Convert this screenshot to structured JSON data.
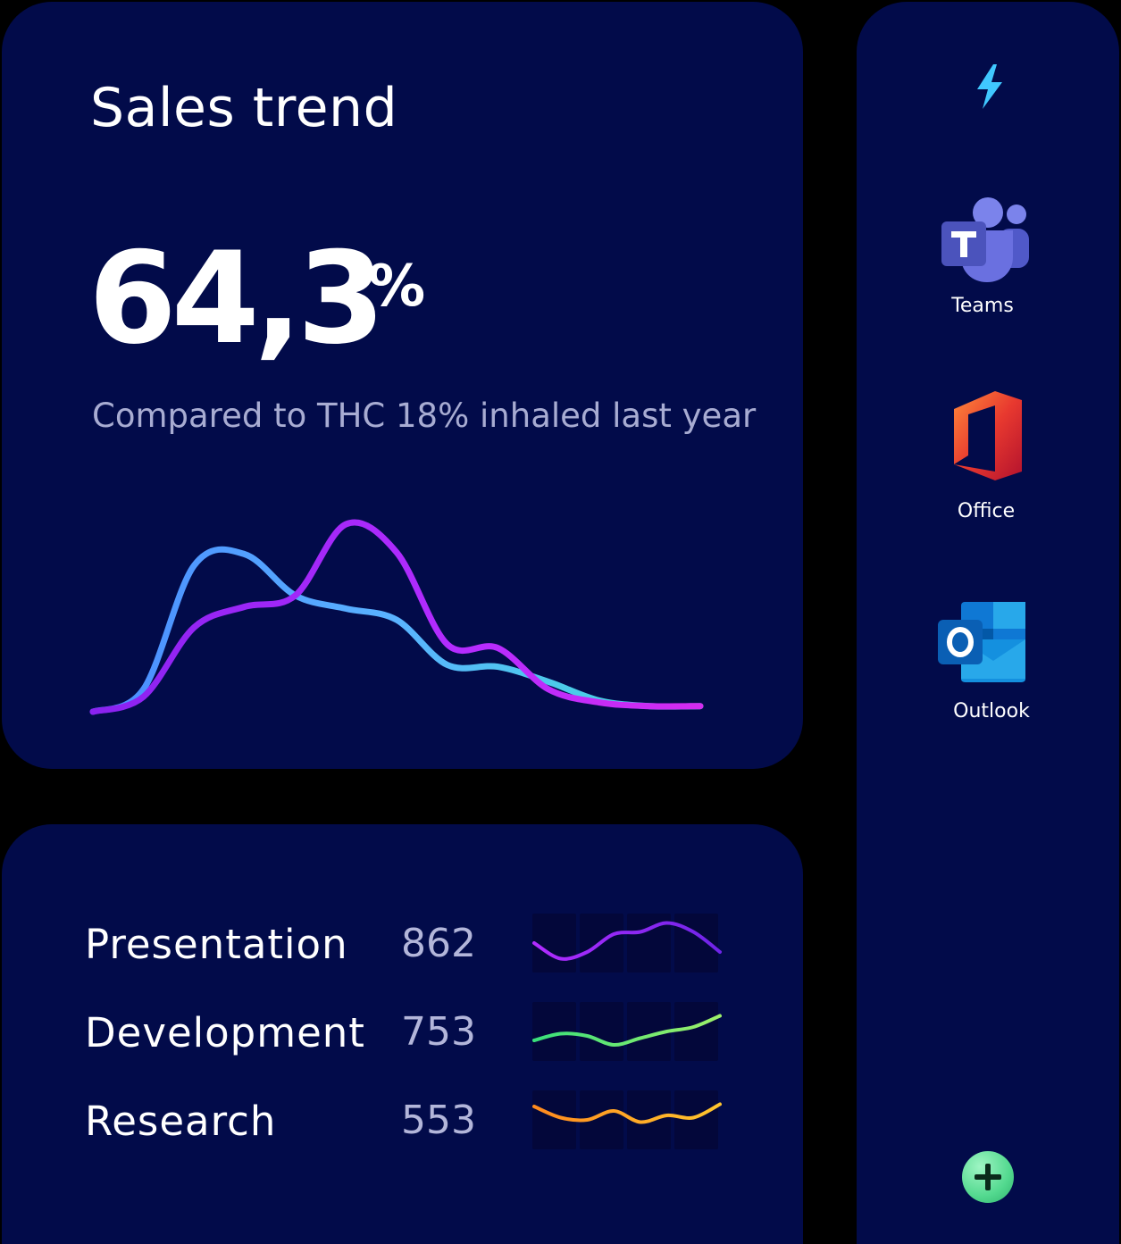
{
  "sales": {
    "title": "Sales trend",
    "value": "64,3",
    "unit": "%",
    "subtitle": "Compared to THC 18% inhaled last year"
  },
  "chart_data": {
    "type": "line",
    "x": [
      0,
      1,
      2,
      3,
      4,
      5,
      6,
      7,
      8,
      9,
      10,
      11,
      12
    ],
    "series": [
      {
        "color": "#a020f0",
        "values": [
          0,
          0.08,
          0.45,
          0.56,
          0.62,
          1.0,
          0.85,
          0.36,
          0.34,
          0.12,
          0.05,
          0.03,
          0.03
        ]
      },
      {
        "color": "#4aa8ff",
        "values": [
          0,
          0.12,
          0.78,
          0.84,
          0.62,
          0.55,
          0.49,
          0.25,
          0.24,
          0.16,
          0.06,
          0.03,
          0.03
        ]
      }
    ],
    "xlabel": "",
    "ylabel": "",
    "grid": false,
    "legend": "none"
  },
  "stats": [
    {
      "label": "Presentation",
      "value": "862",
      "spark": [
        0.5,
        0.15,
        0.3,
        0.7,
        0.75,
        0.95,
        0.75,
        0.3
      ],
      "colors": [
        "#b12cff",
        "#6f24e8"
      ]
    },
    {
      "label": "Development",
      "value": "753",
      "spark": [
        0.3,
        0.45,
        0.4,
        0.2,
        0.35,
        0.5,
        0.6,
        0.85
      ],
      "colors": [
        "#39e07a",
        "#9ef06a"
      ]
    },
    {
      "label": "Research",
      "value": "553",
      "spark": [
        0.8,
        0.55,
        0.5,
        0.7,
        0.45,
        0.6,
        0.55,
        0.85
      ],
      "colors": [
        "#ff8a1e",
        "#ffc52e"
      ]
    }
  ],
  "dock": {
    "apps": [
      {
        "name": "Teams",
        "icon": "teams-icon"
      },
      {
        "name": "Office",
        "icon": "office-icon"
      },
      {
        "name": "Outlook",
        "icon": "outlook-icon"
      }
    ],
    "top_icon": "bolt-icon",
    "add_icon": "plus-icon",
    "colors": {
      "accent": "#40c8ff",
      "add": "#53d98f",
      "card": "#020b4a"
    }
  }
}
